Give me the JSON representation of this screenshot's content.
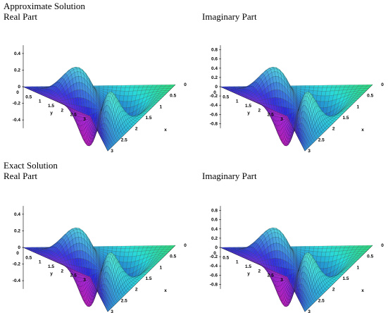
{
  "headings": {
    "approximate": "Approximate Solution",
    "exact": "Exact Solution"
  },
  "plots": [
    {
      "label": "Real Part",
      "z_ticks": [
        "0.4",
        "0.2",
        "0",
        "-0.2",
        "-0.4"
      ],
      "y_ticks": [
        "0",
        "0.5",
        "1",
        "1.5",
        "2",
        "2.5",
        "3"
      ],
      "x_ticks": [
        "0",
        "0.5",
        "1",
        "1.5",
        "2",
        "2.5",
        "3"
      ],
      "x_label": "x",
      "y_label": "y",
      "z_range": [
        -0.5,
        0.5
      ]
    },
    {
      "label": "Imaginary Part",
      "z_ticks": [
        "0.8",
        "0.6",
        "0.4",
        "0.2",
        "0",
        "-0.2",
        "-0.4",
        "-0.6",
        "-0.8"
      ],
      "y_ticks": [
        "0",
        "0.5",
        "1",
        "1.5",
        "2",
        "2.5",
        "3"
      ],
      "x_ticks": [
        "0",
        "0.5",
        "1",
        "1.5",
        "2",
        "2.5",
        "3"
      ],
      "x_label": "x",
      "y_label": "y",
      "z_range": [
        -0.9,
        0.9
      ]
    },
    {
      "label": "Real Part",
      "z_ticks": [
        "0.4",
        "0.2",
        "0",
        "-0.2",
        "-0.4"
      ],
      "y_ticks": [
        "0",
        "0.5",
        "1",
        "1.5",
        "2",
        "2.5",
        "3"
      ],
      "x_ticks": [
        "0",
        "0.5",
        "1",
        "1.5",
        "2",
        "2.5",
        "3"
      ],
      "x_label": "x",
      "y_label": "y",
      "z_range": [
        -0.5,
        0.5
      ]
    },
    {
      "label": "Imaginary Part",
      "z_ticks": [
        "0.8",
        "0.6",
        "0.4",
        "0.2",
        "0",
        "-0.2",
        "-0.4",
        "-0.6",
        "-0.8"
      ],
      "y_ticks": [
        "0",
        "0.5",
        "1",
        "1.5",
        "2",
        "2.5",
        "3"
      ],
      "x_ticks": [
        "0",
        "0.5",
        "1",
        "1.5",
        "2",
        "2.5",
        "3"
      ],
      "x_label": "x",
      "y_label": "y",
      "z_range": [
        -0.9,
        0.9
      ]
    }
  ]
}
